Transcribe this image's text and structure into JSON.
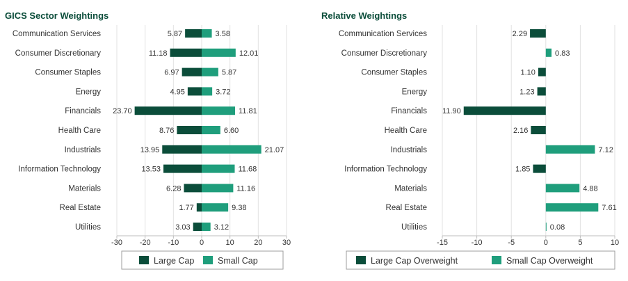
{
  "colors": {
    "large": "#0b4d3a",
    "small": "#1f9e7c",
    "title": "#0b4d3a"
  },
  "chart_data": [
    {
      "type": "bar",
      "orientation": "horizontal",
      "title": "GICS Sector Weightings",
      "categories": [
        "Communication Services",
        "Consumer Discretionary",
        "Consumer Staples",
        "Energy",
        "Financials",
        "Health Care",
        "Industrials",
        "Information Technology",
        "Materials",
        "Real Estate",
        "Utilities"
      ],
      "xlim": [
        -30,
        30
      ],
      "xticks": [
        -30,
        -20,
        -10,
        0,
        10,
        20,
        30
      ],
      "grid": true,
      "legend": "bottom",
      "series": [
        {
          "name": "Large Cap",
          "values": [
            -5.87,
            -11.18,
            -6.97,
            -4.95,
            -23.7,
            -8.76,
            -13.95,
            -13.53,
            -6.28,
            -1.77,
            -3.03
          ],
          "labels": [
            "5.87",
            "11.18",
            "6.97",
            "4.95",
            "23.70",
            "8.76",
            "13.95",
            "13.53",
            "6.28",
            "1.77",
            "3.03"
          ]
        },
        {
          "name": "Small Cap",
          "values": [
            3.58,
            12.01,
            5.87,
            3.72,
            11.81,
            6.6,
            21.07,
            11.68,
            11.16,
            9.38,
            3.12
          ],
          "labels": [
            "3.58",
            "12.01",
            "5.87",
            "3.72",
            "11.81",
            "6.60",
            "21.07",
            "11.68",
            "11.16",
            "9.38",
            "3.12"
          ]
        }
      ]
    },
    {
      "type": "bar",
      "orientation": "horizontal",
      "title": "Relative Weightings",
      "categories": [
        "Communication Services",
        "Consumer Discretionary",
        "Consumer Staples",
        "Energy",
        "Financials",
        "Health Care",
        "Industrials",
        "Information Technology",
        "Materials",
        "Real Estate",
        "Utilities"
      ],
      "xlim": [
        -15,
        10
      ],
      "xticks": [
        -15,
        -10,
        -5,
        0,
        5,
        10
      ],
      "grid": true,
      "legend": "bottom",
      "series": [
        {
          "name": "Large Cap Overweight",
          "values": [
            -2.29,
            null,
            -1.1,
            -1.23,
            -11.9,
            -2.16,
            null,
            -1.85,
            null,
            null,
            null
          ]
        },
        {
          "name": "Small Cap Overweight",
          "values": [
            null,
            0.83,
            null,
            null,
            null,
            null,
            7.12,
            null,
            4.88,
            7.61,
            0.08
          ]
        }
      ],
      "labels": [
        "2.29",
        "0.83",
        "1.10",
        "1.23",
        "11.90",
        "2.16",
        "7.12",
        "1.85",
        "4.88",
        "7.61",
        "0.08"
      ]
    }
  ]
}
